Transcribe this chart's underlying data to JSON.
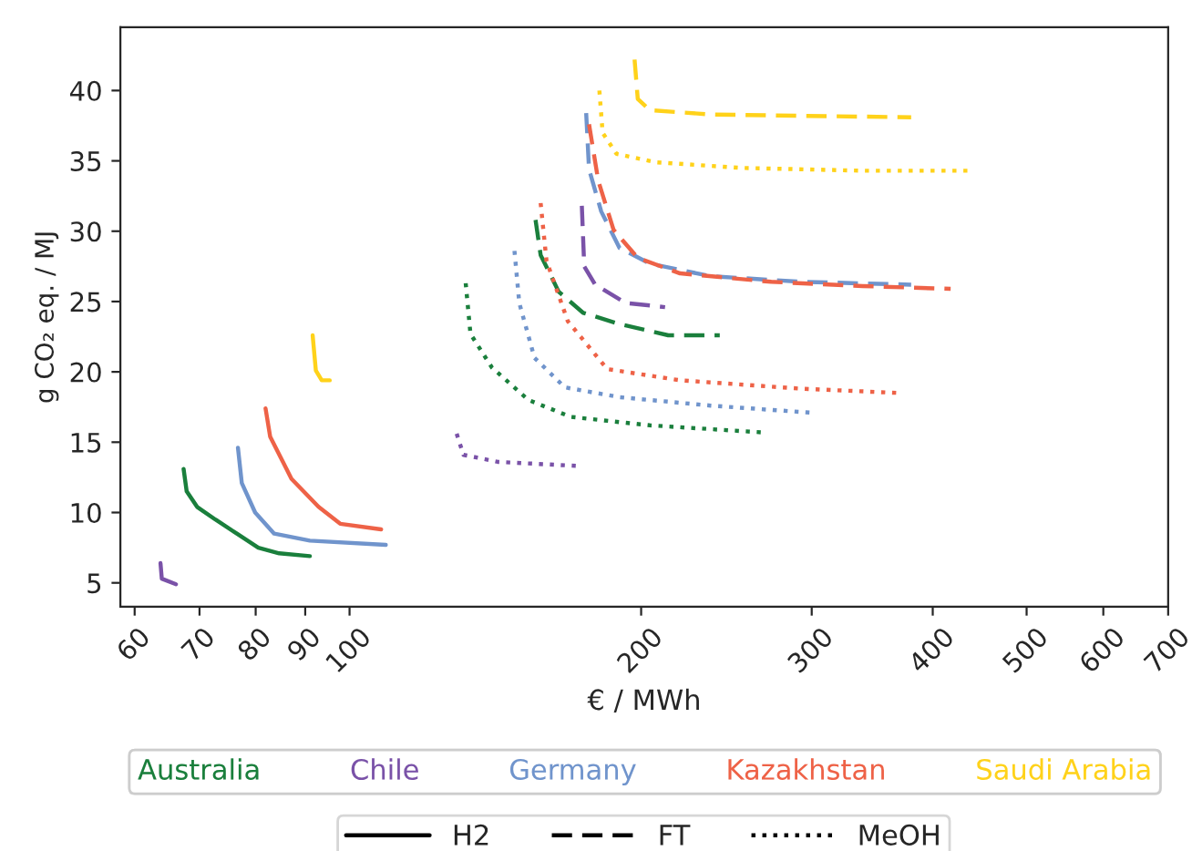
{
  "chart_data": {
    "type": "line",
    "xlabel": "€ / MWh",
    "ylabel": "g CO₂ eq. / MJ",
    "log": "x",
    "xlim": [
      58,
      700
    ],
    "ylim": [
      3.3,
      44.5
    ],
    "xticks": [
      60,
      70,
      80,
      90,
      100,
      200,
      300,
      400,
      500,
      600,
      700
    ],
    "yticks": [
      5,
      10,
      15,
      20,
      25,
      30,
      35,
      40
    ],
    "grid": false,
    "legend": "bottom",
    "annotations": [
      "H2",
      "FT",
      "MeOH"
    ],
    "series": [
      {
        "name": "Australia",
        "color": "#1a7f3c",
        "line_style": "solid",
        "x": [
          67.4,
          67.9,
          69.6,
          72.7,
          76.5,
          80.5,
          84.6,
          91.0
        ],
        "values": [
          13.1,
          11.5,
          10.4,
          9.5,
          8.5,
          7.5,
          7.1,
          6.9
        ]
      },
      {
        "name": "Chile",
        "color": "#7a52a8",
        "line_style": "solid",
        "x": [
          63.8,
          64.0,
          66.2
        ],
        "values": [
          6.4,
          5.3,
          4.9
        ]
      },
      {
        "name": "Germany",
        "color": "#7094cc",
        "line_style": "solid",
        "x": [
          76.7,
          77.4,
          79.9,
          83.6,
          91.0,
          109.0
        ],
        "values": [
          14.6,
          12.1,
          10.0,
          8.5,
          8.0,
          7.7
        ]
      },
      {
        "name": "Kazakhstan",
        "color": "#ee6247",
        "line_style": "solid",
        "x": [
          81.9,
          82.8,
          87.1,
          92.9,
          97.8,
          107.8
        ],
        "values": [
          17.4,
          15.4,
          12.4,
          10.4,
          9.2,
          8.8
        ]
      },
      {
        "name": "Saudi Arabia",
        "color": "#ffd21a",
        "line_style": "solid",
        "x": [
          91.6,
          92.3,
          93.6,
          95.4
        ],
        "values": [
          22.6,
          20.1,
          19.4,
          19.4
        ]
      },
      {
        "color": "#1a7f3c",
        "line_style": "dashed",
        "x": [
          155.6,
          157.5,
          164.4,
          174.2,
          190,
          213.3,
          241.1
        ],
        "values": [
          30.8,
          28.3,
          25.7,
          24.2,
          23.4,
          22.6,
          22.6
        ]
      },
      {
        "color": "#7a52a8",
        "line_style": "dashed",
        "x": [
          173.7,
          174.7,
          179.3,
          192.7,
          211.7
        ],
        "values": [
          31.8,
          27.5,
          26.2,
          24.9,
          24.6
        ]
      },
      {
        "color": "#7094cc",
        "line_style": "dashed",
        "x": [
          175.5,
          176.7,
          181.9,
          190,
          204.2,
          235.9,
          293,
          380
        ],
        "values": [
          38.4,
          34.4,
          31.4,
          28.8,
          27.7,
          26.8,
          26.4,
          26.2
        ]
      },
      {
        "color": "#ee6247",
        "line_style": "dashed",
        "x": [
          176.7,
          180.6,
          187.3,
          198.4,
          219.4,
          272.5,
          338.5,
          417.4
        ],
        "values": [
          37.6,
          33.6,
          30.1,
          28.1,
          27.0,
          26.4,
          26.1,
          25.9
        ]
      },
      {
        "color": "#ffd21a",
        "line_style": "dashed",
        "x": [
          196.9,
          198.4,
          204.2,
          235.9,
          293,
          380
        ],
        "values": [
          42.2,
          39.4,
          38.6,
          38.3,
          38.2,
          38.1
        ]
      },
      {
        "color": "#1a7f3c",
        "line_style": "dotted",
        "x": [
          131.8,
          133.3,
          140.3,
          153,
          169.2,
          204.2,
          266.7
        ],
        "values": [
          26.3,
          22.7,
          20.3,
          18.0,
          16.8,
          16.2,
          15.7
        ]
      },
      {
        "color": "#7a52a8",
        "line_style": "dotted",
        "x": [
          129,
          131.1,
          142.3,
          173.4
        ],
        "values": [
          15.6,
          14.1,
          13.6,
          13.3
        ]
      },
      {
        "color": "#7094cc",
        "line_style": "dotted",
        "x": [
          148,
          149.7,
          155.2,
          166.8,
          190,
          235.9,
          299.4
        ],
        "values": [
          28.6,
          24.9,
          21.0,
          18.9,
          18.2,
          17.6,
          17.1
        ]
      },
      {
        "color": "#ee6247",
        "line_style": "dotted",
        "x": [
          157.5,
          159.7,
          168,
          184.5,
          219.4,
          293,
          369.1
        ],
        "values": [
          32.0,
          27.9,
          23.6,
          20.2,
          19.4,
          18.8,
          18.5
        ]
      },
      {
        "color": "#ffd21a",
        "line_style": "dotted",
        "x": [
          181.1,
          182.5,
          188.6,
          207.2,
          253.6,
          338.5,
          435.9
        ],
        "values": [
          40.0,
          37.0,
          35.5,
          34.9,
          34.5,
          34.3,
          34.3
        ]
      }
    ]
  }
}
